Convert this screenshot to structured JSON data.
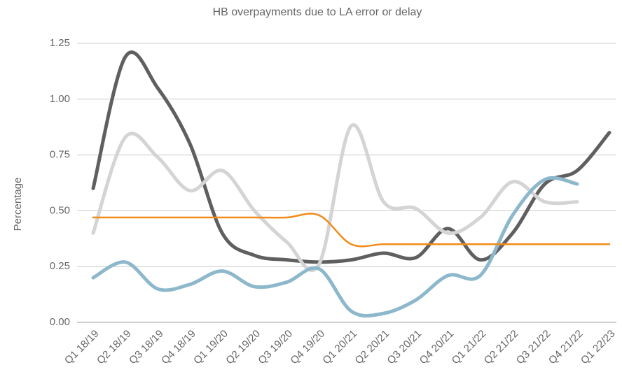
{
  "chart_data": {
    "type": "line",
    "title": "HB overpayments due to LA error or delay",
    "y_label": "Percentage",
    "categories": [
      "Q1 18/19",
      "Q2 18/19",
      "Q3 18/19",
      "Q4 18/19",
      "Q1 19/20",
      "Q2 19/20",
      "Q3 19/20",
      "Q4 19/20",
      "Q1 20/21",
      "Q2 20/21",
      "Q3 20/21",
      "Q4 20/21",
      "Q1 21/22",
      "Q2 21/22",
      "Q3 21/22",
      "Q4 21/22",
      "Q1 22/23"
    ],
    "series": [
      {
        "color": "#5f5f5f",
        "values": [
          0.6,
          1.19,
          1.05,
          0.8,
          0.4,
          0.3,
          0.28,
          0.27,
          0.28,
          0.31,
          0.29,
          0.42,
          0.28,
          0.4,
          0.62,
          0.68,
          0.85
        ]
      },
      {
        "color": "#d4d4d4",
        "values": [
          0.4,
          0.83,
          0.74,
          0.59,
          0.68,
          0.5,
          0.36,
          0.26,
          0.88,
          0.54,
          0.51,
          0.4,
          0.47,
          0.63,
          0.54,
          0.54,
          null
        ]
      },
      {
        "color": "#8db8cb",
        "values": [
          0.2,
          0.27,
          0.15,
          0.17,
          0.23,
          0.16,
          0.18,
          0.24,
          0.05,
          0.04,
          0.1,
          0.21,
          0.21,
          0.48,
          0.64,
          0.62,
          null
        ]
      },
      {
        "color": "#f28b18",
        "values": [
          0.47,
          0.47,
          0.47,
          0.47,
          0.47,
          0.47,
          0.47,
          0.48,
          0.35,
          0.35,
          0.35,
          0.35,
          0.35,
          0.35,
          0.35,
          0.35,
          0.35
        ]
      }
    ],
    "ylim": [
      0,
      1.25
    ],
    "yticks": [
      {
        "value": 0,
        "label": "0.00"
      },
      {
        "value": 0.25,
        "label": "0.25"
      },
      {
        "value": 0.5,
        "label": "0.50"
      },
      {
        "value": 0.75,
        "label": "0.75"
      },
      {
        "value": 1,
        "label": "1.00"
      },
      {
        "value": 1.25,
        "label": "1.25"
      }
    ],
    "grid": true
  }
}
